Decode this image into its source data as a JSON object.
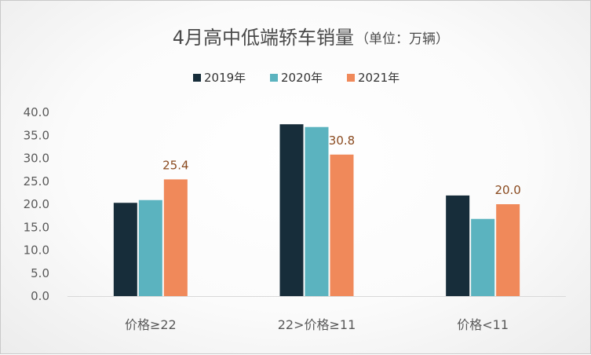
{
  "chart_data": {
    "type": "bar",
    "title": "4月高中低端轿车销量",
    "subtitle": "（单位：万辆）",
    "categories": [
      "价格≥22",
      "22>价格≥11",
      "价格<11"
    ],
    "series": [
      {
        "name": "2019年",
        "color": "#172d3a",
        "values": [
          20.3,
          37.4,
          21.9
        ]
      },
      {
        "name": "2020年",
        "color": "#5bb3bf",
        "values": [
          20.9,
          36.8,
          16.8
        ]
      },
      {
        "name": "2021年",
        "color": "#f0895a",
        "values": [
          25.4,
          30.8,
          20.0
        ]
      }
    ],
    "data_labels": [
      {
        "series": 2,
        "index": 0,
        "text": "25.4"
      },
      {
        "series": 2,
        "index": 1,
        "text": "30.8"
      },
      {
        "series": 2,
        "index": 2,
        "text": "20.0"
      }
    ],
    "yticks": [
      "0.0",
      "5.0",
      "10.0",
      "15.0",
      "20.0",
      "25.0",
      "30.0",
      "35.0",
      "40.0"
    ],
    "ylim": [
      0,
      40
    ],
    "legend_position": "top",
    "grid": false,
    "label_color": "#8a4a1f",
    "axis_color": "#d9d9d9"
  }
}
